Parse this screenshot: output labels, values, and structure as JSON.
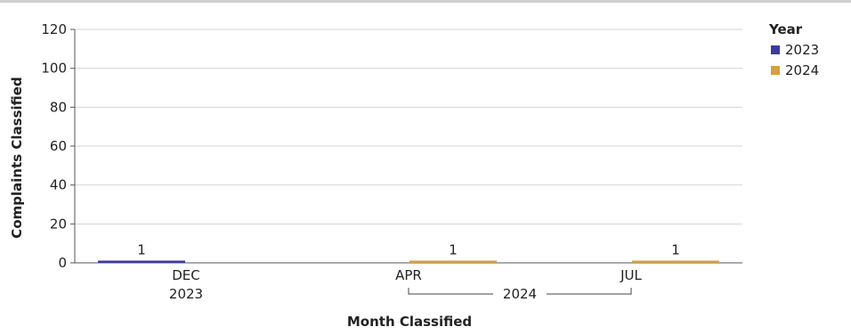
{
  "chart_data": {
    "type": "bar",
    "xlabel": "Month Classified",
    "ylabel": "Complaints Classified",
    "ylim": [
      0,
      120
    ],
    "yticks": [
      0,
      20,
      40,
      60,
      80,
      100,
      120
    ],
    "grid": true,
    "legend": {
      "title": "Year",
      "placement": "right",
      "entries": [
        {
          "name": "2023",
          "color": "#3b3ba3"
        },
        {
          "name": "2024",
          "color": "#d4a040"
        }
      ]
    },
    "categories": [
      {
        "month": "DEC",
        "year": "2023",
        "value": 1,
        "series": "2023"
      },
      {
        "month": "APR",
        "year": "2024",
        "value": 1,
        "series": "2024"
      },
      {
        "month": "JUL",
        "year": "2024",
        "value": 1,
        "series": "2024"
      }
    ],
    "year_groups": [
      {
        "label": "2023",
        "span": [
          0,
          0
        ]
      },
      {
        "label": "2024",
        "span": [
          1,
          2
        ]
      }
    ]
  }
}
